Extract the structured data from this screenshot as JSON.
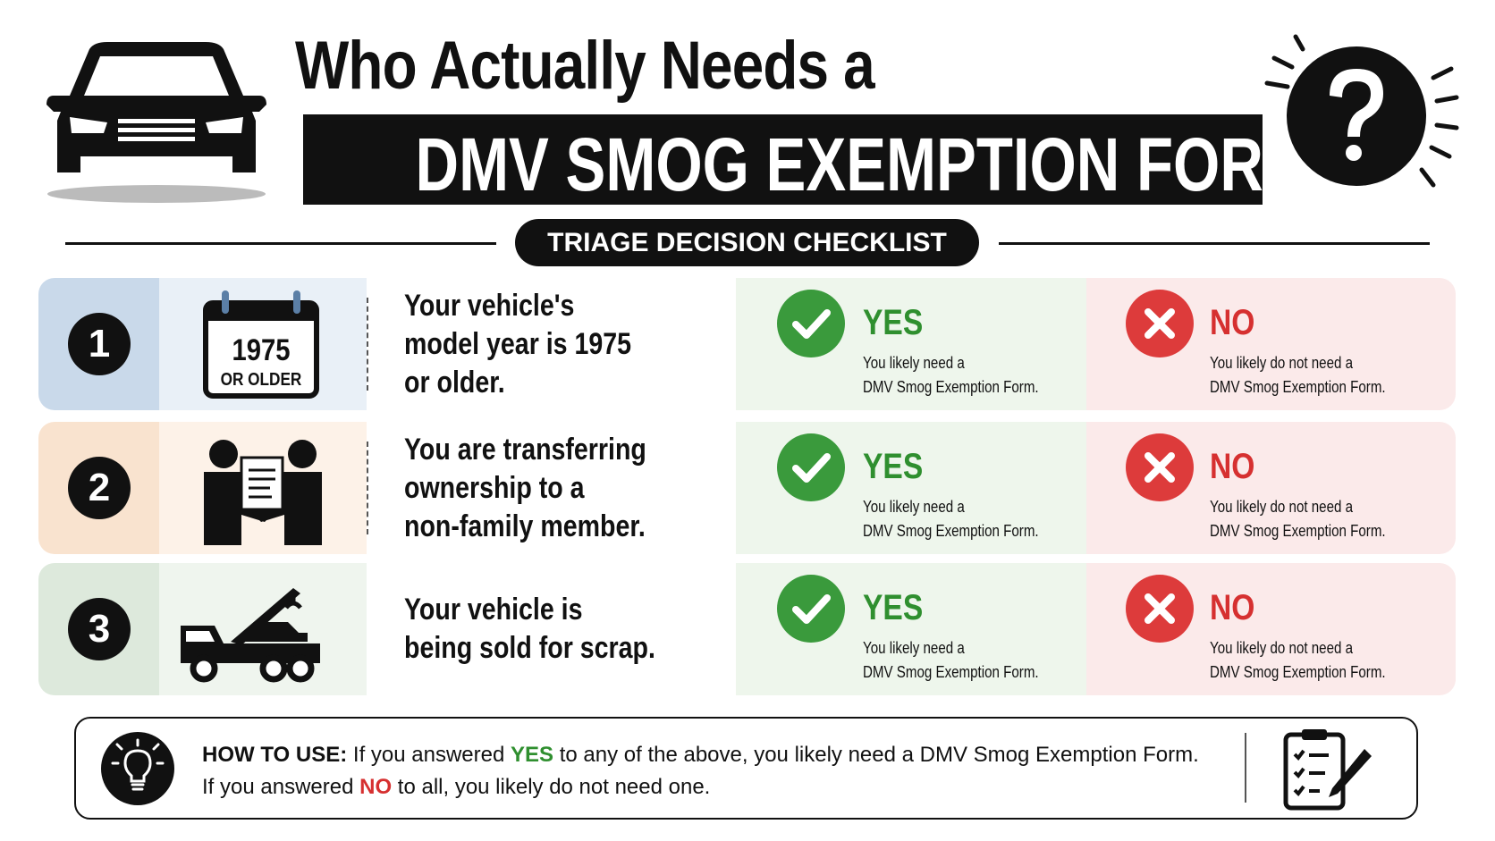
{
  "header": {
    "title_line1": "Who Actually Needs a",
    "title_line2": "DMV SMOG EXEMPTION FORM",
    "badge": "TRIAGE DECISION CHECKLIST"
  },
  "rows": [
    {
      "number": "1",
      "icon_text": [
        "1975",
        "OR OLDER"
      ],
      "question": [
        "Your vehicle's",
        "model year is 1975",
        "or older."
      ],
      "yes": {
        "label": "YES",
        "text": [
          "You likely need a",
          "DMV Smog Exemption Form."
        ]
      },
      "no": {
        "label": "NO",
        "text": [
          "You likely do not need a",
          "DMV Smog Exemption Form."
        ]
      }
    },
    {
      "number": "2",
      "question": [
        "You are transferring",
        "ownership to a",
        "non-family member."
      ],
      "yes": {
        "label": "YES",
        "text": [
          "You likely need a",
          "DMV Smog Exemption Form."
        ]
      },
      "no": {
        "label": "NO",
        "text": [
          "You likely do not need a",
          "DMV Smog Exemption Form."
        ]
      }
    },
    {
      "number": "3",
      "question": [
        "Your vehicle is",
        "being sold for scrap."
      ],
      "yes": {
        "label": "YES",
        "text": [
          "You likely need a",
          "DMV Smog Exemption Form."
        ]
      },
      "no": {
        "label": "NO",
        "text": [
          "You likely do not need a",
          "DMV Smog Exemption Form."
        ]
      }
    }
  ],
  "footer": {
    "label": "HOW TO USE:",
    "line1": [
      "If you answered",
      "YES",
      "to any of the above, you likely need a DMV Smog Exemption Form."
    ],
    "line2": [
      "If you answered",
      "NO",
      "to all, you likely do not need one."
    ]
  }
}
